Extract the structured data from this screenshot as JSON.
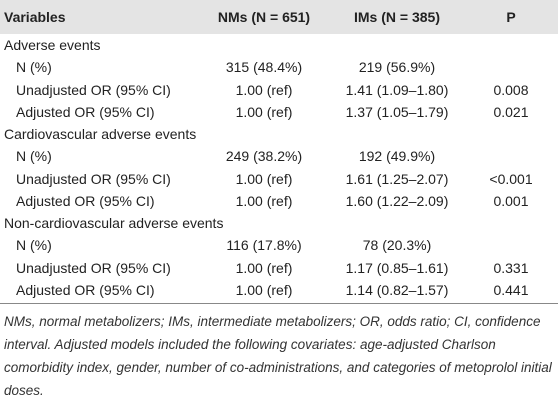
{
  "table": {
    "header": [
      "Variables",
      "NMs (N = 651)",
      "IMs (N = 385)",
      "P"
    ],
    "rows": [
      [
        "Adverse events"
      ],
      [
        "N (%)",
        "315 (48.4%)",
        "219 (56.9%)"
      ],
      [
        "Unadjusted OR (95% CI)",
        "1.00 (ref)",
        "1.41 (1.09–1.80)",
        "0.008"
      ],
      [
        "Adjusted OR (95% CI)",
        "1.00 (ref)",
        "1.37 (1.05–1.79)",
        "0.021"
      ],
      [
        "Cardiovascular adverse events"
      ],
      [
        "N (%)",
        "249 (38.2%)",
        "192 (49.9%)"
      ],
      [
        "Unadjusted OR (95% CI)",
        "1.00 (ref)",
        "1.61 (1.25–2.07)",
        "<0.001"
      ],
      [
        "Adjusted OR (95% CI)",
        "1.00 (ref)",
        "1.60 (1.22–2.09)",
        "0.001"
      ],
      [
        "Non-cardiovascular adverse events"
      ],
      [
        "N (%)",
        "116 (17.8%)",
        "78 (20.3%)"
      ],
      [
        "Unadjusted OR (95% CI)",
        "1.00 (ref)",
        "1.17 (0.85–1.61)",
        "0.331"
      ],
      [
        "Adjusted OR (95% CI)",
        "1.00 (ref)",
        "1.14 (0.82–1.57)",
        "0.441"
      ]
    ],
    "footnote": "NMs, normal metabolizers; IMs, intermediate metabolizers; OR, odds ratio; CI, confidence interval. Adjusted models included the following covariates: age-adjusted Charlson comorbidity index, gender, number of co-administrations, and categories of metoprolol initial doses."
  }
}
